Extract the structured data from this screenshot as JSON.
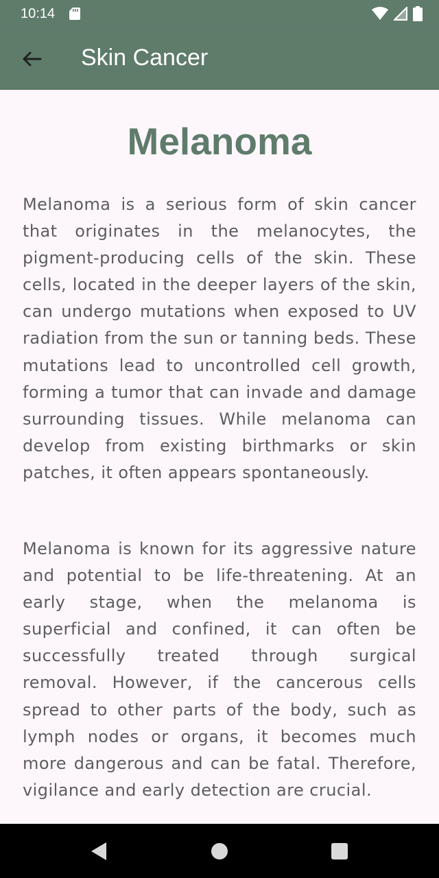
{
  "status_bar": {
    "time": "10:14"
  },
  "app_bar": {
    "title": "Skin Cancer",
    "back_icon": "arrow-back-icon"
  },
  "article": {
    "title": "Melanoma",
    "paragraphs": [
      "Melanoma is a serious form of skin cancer that originates in the melanocytes, the pigment-producing cells of the skin. These cells, located in the deeper layers of the skin, can undergo mutations when exposed to UV radiation from the sun or tanning beds. These mutations lead to uncontrolled cell growth, forming a tumor that can invade and damage surrounding tissues. While melanoma can develop from existing birthmarks or skin patches, it often appears spontaneously.",
      "Melanoma is known for its aggressive nature and potential to be life-threatening. At an early stage, when the melanoma is superficial and confined, it can often be successfully treated through surgical removal. However, if the cancerous cells spread to other parts of the body, such as lymph nodes or organs, it becomes much more dangerous and can be fatal. Therefore, vigilance and early detection are crucial."
    ]
  },
  "colors": {
    "primary": "#5f7c6b",
    "background": "#fdf7fc",
    "body_text": "#5d5d5d"
  },
  "icons": {
    "status": [
      "sd-card-icon",
      "wifi-icon",
      "signal-icon",
      "battery-icon"
    ],
    "navigation": [
      "nav-back-icon",
      "nav-home-icon",
      "nav-recents-icon"
    ]
  }
}
